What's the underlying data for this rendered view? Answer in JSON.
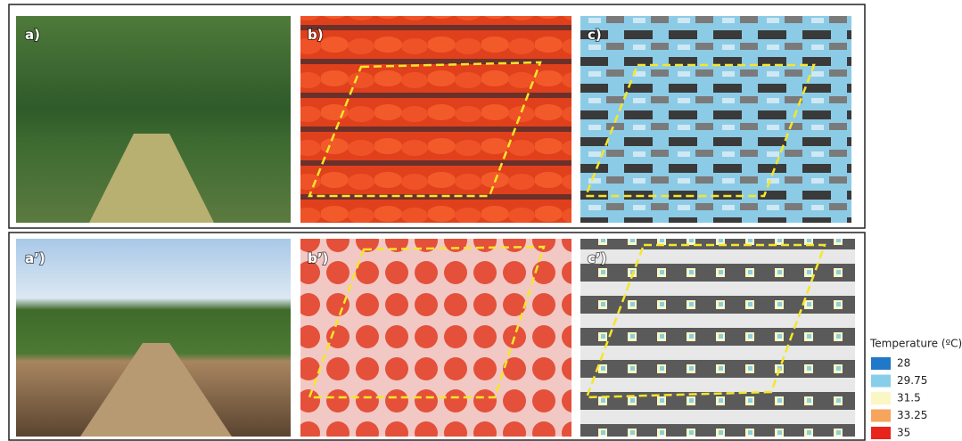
{
  "panels": [
    {
      "label": "a)"
    },
    {
      "label": "b)"
    },
    {
      "label": "c)"
    },
    {
      "label": "a’)"
    },
    {
      "label": "b’)"
    },
    {
      "label": "c’)"
    }
  ],
  "legend": {
    "title": "Temperature (ºC)",
    "items": [
      {
        "label": "28",
        "color": "#1f78c8"
      },
      {
        "label": "29.75",
        "color": "#87cfe8"
      },
      {
        "label": "31.5",
        "color": "#fbf7c4"
      },
      {
        "label": "33.25",
        "color": "#f5a55c"
      },
      {
        "label": "35",
        "color": "#e8231b"
      }
    ]
  }
}
